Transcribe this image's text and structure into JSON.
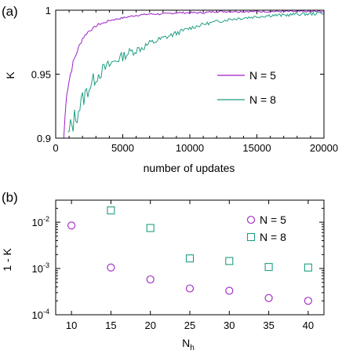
{
  "colors": {
    "n5": "#9a1fc6",
    "n8": "#1e9e83",
    "axis": "#000000"
  },
  "chart_data": [
    {
      "type": "line",
      "panel_label": "(a)",
      "xlabel": "number of updates",
      "ylabel": "K",
      "xlim": [
        0,
        20000
      ],
      "ylim": [
        0.9,
        1.0
      ],
      "xticks": [
        0,
        5000,
        10000,
        15000,
        20000
      ],
      "xtick_labels": [
        "0",
        "5000",
        "10000",
        "15000",
        "20000"
      ],
      "yticks": [
        0.9,
        0.95,
        1.0
      ],
      "ytick_labels": [
        "0.9",
        "0.95",
        "1"
      ],
      "legend": "center-right",
      "series": [
        {
          "name": "N = 5",
          "x": [
            600,
            800,
            1000,
            1200,
            1400,
            1600,
            1800,
            2000,
            2400,
            2800,
            3200,
            3600,
            4000,
            4500,
            5000,
            5500,
            6000,
            7000,
            8000,
            9000,
            10000,
            11000,
            12000,
            13000,
            14000,
            15000,
            16000,
            17000,
            18000,
            19000,
            20000
          ],
          "y": [
            0.9,
            0.935,
            0.945,
            0.955,
            0.962,
            0.968,
            0.973,
            0.978,
            0.983,
            0.986,
            0.989,
            0.99,
            0.992,
            0.993,
            0.994,
            0.995,
            0.996,
            0.997,
            0.997,
            0.998,
            0.998,
            0.998,
            0.999,
            0.999,
            0.999,
            0.999,
            0.999,
            0.999,
            0.999,
            0.999,
            0.999
          ]
        },
        {
          "name": "N = 8",
          "x": [
            900,
            1200,
            1600,
            2000,
            2500,
            3000,
            3500,
            4000,
            4500,
            5000,
            5500,
            6000,
            6500,
            7000,
            7500,
            8000,
            8500,
            9000,
            9500,
            10000,
            11000,
            12000,
            13000,
            14000,
            15000,
            16000,
            17000,
            18000,
            19000,
            20000
          ],
          "y": [
            0.9,
            0.91,
            0.92,
            0.93,
            0.94,
            0.948,
            0.953,
            0.957,
            0.961,
            0.964,
            0.967,
            0.969,
            0.971,
            0.974,
            0.976,
            0.978,
            0.98,
            0.982,
            0.984,
            0.986,
            0.989,
            0.991,
            0.993,
            0.994,
            0.995,
            0.996,
            0.996,
            0.997,
            0.997,
            0.998
          ]
        }
      ]
    },
    {
      "type": "scatter",
      "panel_label": "(b)",
      "xlabel": "N_h",
      "xlabel_main": "N",
      "xlabel_sub": "h",
      "ylabel": "1 - K",
      "yscale": "log",
      "xlim": [
        8,
        42
      ],
      "ylim": [
        0.0001,
        0.03
      ],
      "xticks": [
        10,
        15,
        20,
        25,
        30,
        35,
        40
      ],
      "xtick_labels": [
        "10",
        "15",
        "20",
        "25",
        "30",
        "35",
        "40"
      ],
      "yticks": [
        0.0001,
        0.001,
        0.01
      ],
      "ytick_base": [
        "10",
        "10",
        "10"
      ],
      "ytick_exp": [
        "-4",
        "-3",
        "-2"
      ],
      "legend": "top-right",
      "series": [
        {
          "name": "N = 5",
          "marker": "circle",
          "x": [
            10,
            15,
            20,
            25,
            30,
            35,
            40
          ],
          "y": [
            0.0085,
            0.00105,
            0.00058,
            0.00037,
            0.00033,
            0.00023,
            0.0002
          ]
        },
        {
          "name": "N = 8",
          "marker": "square",
          "x": [
            15,
            20,
            25,
            30,
            35,
            40
          ],
          "y": [
            0.018,
            0.0075,
            0.00165,
            0.00145,
            0.00108,
            0.00105
          ]
        }
      ]
    }
  ]
}
